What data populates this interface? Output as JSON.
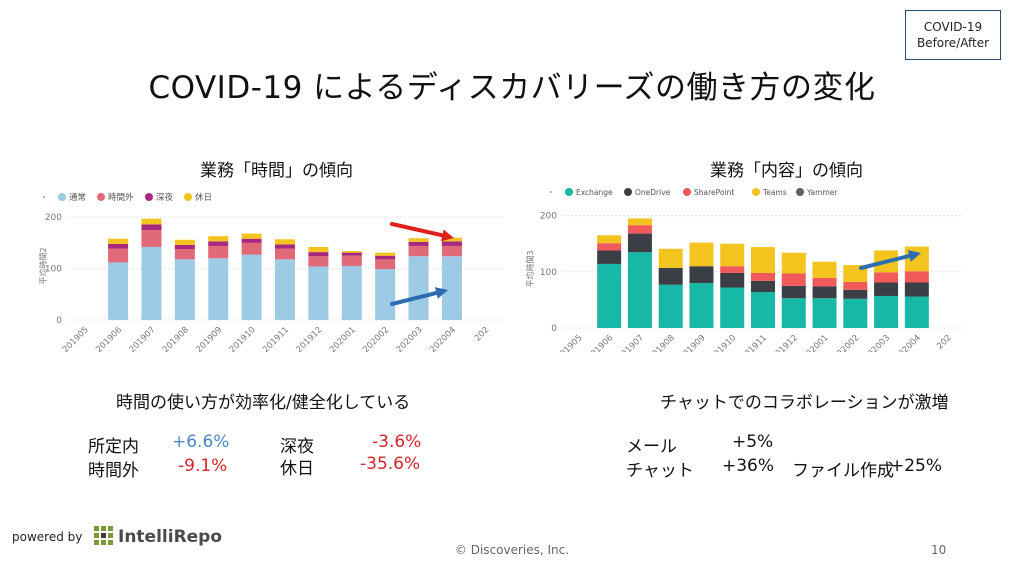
{
  "badge": {
    "line1": "COVID-19",
    "line2": "Before/After"
  },
  "title": "COVID-19 によるディスカバリーズの働き方の変化",
  "left_panel": {
    "subtitle": "業務「時間」の傾向",
    "caption": "時間の使い方が効率化/健全化している",
    "stats": [
      {
        "label": "所定内",
        "value": "+6.6%"
      },
      {
        "label": "時間外",
        "value": "-9.1%"
      },
      {
        "label": "深夜",
        "value": "-3.6%"
      },
      {
        "label": "休日",
        "value": "-35.6%"
      }
    ]
  },
  "right_panel": {
    "subtitle": "業務「内容」の傾向",
    "caption": "チャットでのコラボレーションが激増",
    "stats": [
      {
        "label": "メール",
        "value": "+5%"
      },
      {
        "label": "チャット",
        "value": "+36%"
      },
      {
        "label": "ファイル作成",
        "value": "+25%"
      }
    ]
  },
  "colors": {
    "up": "#4a86c8",
    "down": "#d4242a",
    "arrow_blue": "#2e6db0",
    "arrow_red": "#e0201c"
  },
  "chart_data": [
    {
      "type": "bar",
      "stacked": true,
      "ylabel": "平均時間2",
      "ylim": [
        0,
        210
      ],
      "yticks": [
        0,
        100,
        200
      ],
      "grid": true,
      "legend": "top-left",
      "categories": [
        "201905",
        "201906",
        "201907",
        "201908",
        "201909",
        "201910",
        "201911",
        "201912",
        "202001",
        "202002",
        "202003",
        "202004",
        "202"
      ],
      "series": [
        {
          "name": "通常",
          "color": "#9dcbe6",
          "values": [
            null,
            112,
            142,
            118,
            120,
            127,
            118,
            104,
            105,
            99,
            124,
            124,
            null
          ]
        },
        {
          "name": "時間外",
          "color": "#e06a78",
          "values": [
            null,
            27,
            33,
            20,
            24,
            23,
            21,
            20,
            20,
            19,
            20,
            20,
            null
          ]
        },
        {
          "name": "深夜",
          "color": "#a8287e",
          "values": [
            null,
            9,
            11,
            8,
            9,
            8,
            8,
            8,
            6,
            7,
            8,
            9,
            null
          ]
        },
        {
          "name": "休日",
          "color": "#f2c41d",
          "values": [
            null,
            10,
            11,
            10,
            10,
            10,
            10,
            10,
            3,
            6,
            7,
            7,
            null
          ]
        }
      ]
    },
    {
      "type": "bar",
      "stacked": true,
      "ylabel": "平均時間3",
      "ylim": [
        0,
        210
      ],
      "yticks": [
        0,
        100,
        200
      ],
      "grid": true,
      "legend": "top-left",
      "categories": [
        "201905",
        "201906",
        "201907",
        "201908",
        "201909",
        "201910",
        "201911",
        "201912",
        "202001",
        "202002",
        "202003",
        "202004",
        "202"
      ],
      "series": [
        {
          "name": "Exchange",
          "color": "#17b8a6",
          "values": [
            null,
            114,
            135,
            77,
            80,
            72,
            64,
            53,
            53,
            52,
            57,
            56,
            null
          ]
        },
        {
          "name": "OneDrive",
          "color": "#3b3e44",
          "values": [
            null,
            24,
            33,
            30,
            30,
            26,
            20,
            22,
            21,
            16,
            24,
            25,
            null
          ]
        },
        {
          "name": "SharePoint",
          "color": "#f15a5a",
          "values": [
            null,
            13,
            15,
            0,
            0,
            12,
            14,
            22,
            15,
            14,
            18,
            20,
            null
          ]
        },
        {
          "name": "Teams",
          "color": "#f2c41d",
          "values": [
            null,
            14,
            12,
            34,
            42,
            40,
            46,
            37,
            29,
            30,
            39,
            44,
            null
          ]
        },
        {
          "name": "Yammer",
          "color": "#5e6066",
          "values": [
            null,
            0,
            0,
            0,
            0,
            0,
            0,
            0,
            0,
            0,
            0,
            0,
            null
          ]
        }
      ]
    }
  ]
}
